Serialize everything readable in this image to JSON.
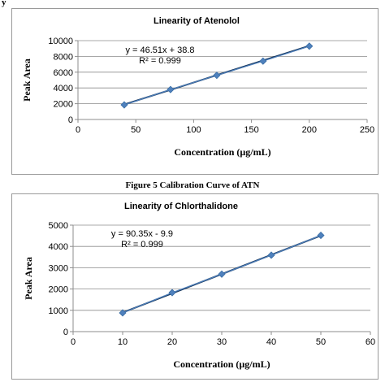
{
  "page": {
    "corner_text": "y",
    "caption": "Figure 5 Calibration Curve of ATN"
  },
  "chart_data": [
    {
      "type": "scatter",
      "title": "Linearity of Atenolol",
      "xlabel": "Concentration (µg/mL)",
      "ylabel": "Peak Area",
      "xlim": [
        0,
        250
      ],
      "ylim": [
        0,
        10000
      ],
      "xticks": [
        0,
        50,
        100,
        150,
        200,
        250
      ],
      "yticks": [
        0,
        2000,
        4000,
        6000,
        8000,
        10000
      ],
      "grid": "horizontal",
      "legend": "none",
      "series": [
        {
          "x": [
            40,
            80,
            120,
            160,
            200
          ],
          "y": [
            1850,
            3800,
            5600,
            7400,
            9300
          ],
          "color": "#4f81bd"
        }
      ],
      "trendline": {
        "color": "#17375e",
        "slope": 46.51,
        "intercept": 38.8
      },
      "annotations": [
        "y = 46.51x + 38.8",
        "R² = 0.999"
      ]
    },
    {
      "type": "scatter",
      "title": "Linearity of Chlorthalidone",
      "xlabel": "Concentration (µg/mL)",
      "ylabel": "Peak Area",
      "xlim": [
        0,
        60
      ],
      "ylim": [
        0,
        5000
      ],
      "xticks": [
        0,
        10,
        20,
        30,
        40,
        50,
        60
      ],
      "yticks": [
        0,
        1000,
        2000,
        3000,
        4000,
        5000
      ],
      "grid": "horizontal",
      "legend": "none",
      "series": [
        {
          "x": [
            10,
            20,
            30,
            40,
            50
          ],
          "y": [
            880,
            1830,
            2700,
            3590,
            4520
          ],
          "color": "#4f81bd"
        }
      ],
      "trendline": {
        "color": "#17375e",
        "slope": 90.35,
        "intercept": -9.9
      },
      "annotations": [
        "y = 90.35x - 9.9",
        "R² = 0.999"
      ]
    }
  ]
}
